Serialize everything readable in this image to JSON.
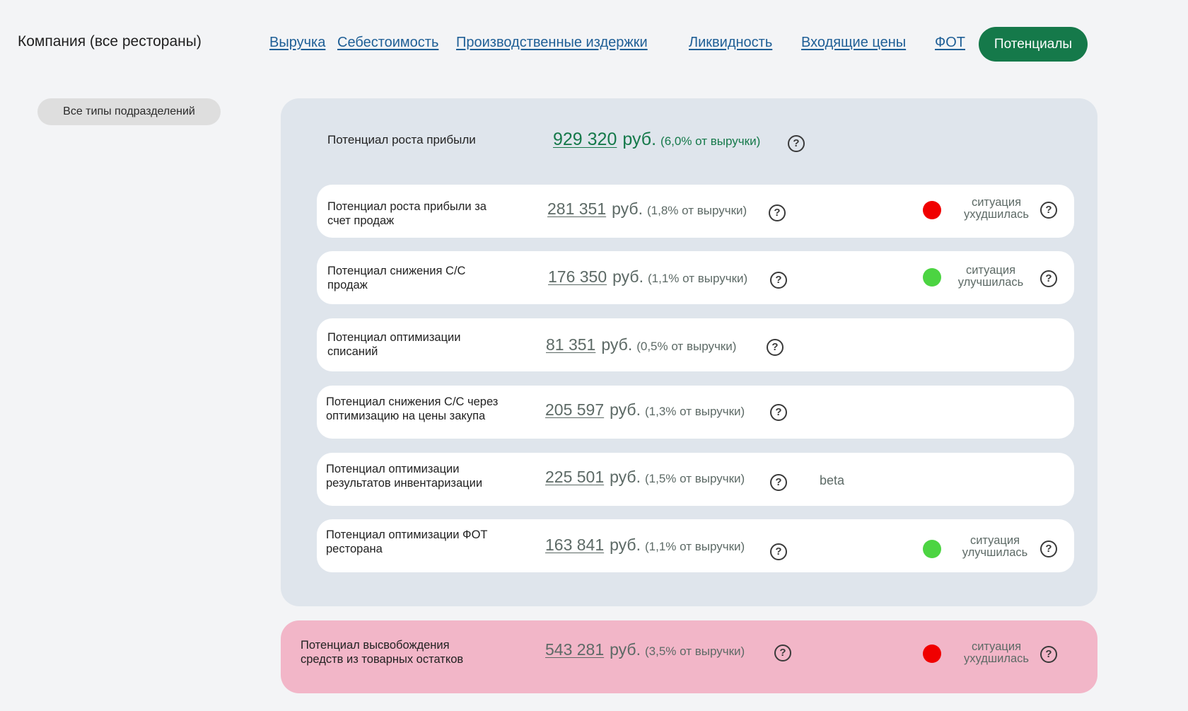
{
  "header": {
    "company": "Компания (все рестораны)",
    "nav": [
      "Выручка",
      "Себестоимость",
      "Производственные издержки",
      "Ликвидность",
      "Входящие цены",
      "ФОТ"
    ],
    "active_tab": "Потенциалы"
  },
  "filter": {
    "label": "Все типы подразделений"
  },
  "summary": {
    "label": "Потенциал роста прибыли",
    "value": "929 320",
    "currency": "руб.",
    "share": "(6,0% от выручки)"
  },
  "cards": [
    {
      "label": "Потенциал роста прибыли за счет продаж",
      "value": "281 351",
      "currency": "руб.",
      "share": "(1,8% от выручки)",
      "status": "ситуация ухудшилась",
      "status_color": "#f00000"
    },
    {
      "label": "Потенциал снижения С/С продаж",
      "value": "176 350",
      "currency": "руб.",
      "share": "(1,1% от выручки)",
      "status": "ситуация улучшилась",
      "status_color": "#4cd442"
    },
    {
      "label": "Потенциал оптимизации списаний",
      "value": "81 351",
      "currency": "руб.",
      "share": "(0,5% от выручки)",
      "status": "",
      "status_color": ""
    },
    {
      "label": "Потенциал снижения С/С через оптимизацию на цены закупа",
      "value": "205 597",
      "currency": "руб.",
      "share": "(1,3% от выручки)",
      "status": "",
      "status_color": ""
    },
    {
      "label": "Потенциал оптимизации результатов инвентаризации",
      "value": "225 501",
      "currency": "руб.",
      "share": "(1,5% от выручки)",
      "status": "",
      "status_color": "",
      "badge": "beta"
    },
    {
      "label": "Потенциал оптимизации ФОТ ресторана",
      "value": "163 841",
      "currency": "руб.",
      "share": "(1,1% от выручки)",
      "status": "ситуация улучшилась",
      "status_color": "#4cd442"
    }
  ],
  "bottom": {
    "label": "Потенциал высвобождения средств из товарных остатков",
    "value": "543 281",
    "currency": "руб.",
    "share": "(3,5% от выручки)",
    "status": "ситуация ухудшилась",
    "status_color": "#f00000"
  },
  "help_icon": "?",
  "colors": {
    "accent": "#15794a",
    "panel": "#dfe5ec",
    "alert_panel": "#f2b6c8",
    "link": "#1f5f96"
  }
}
